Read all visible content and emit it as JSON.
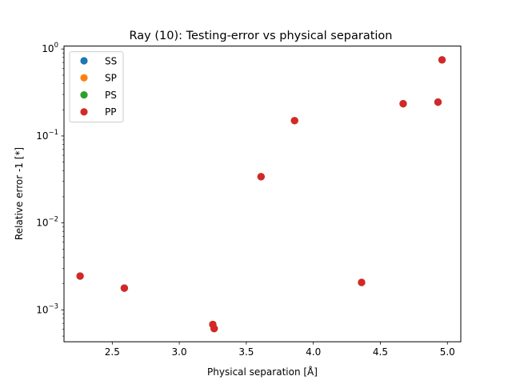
{
  "chart_data": {
    "type": "scatter",
    "title": "Ray (10): Testing-error vs physical separation",
    "xlabel": "Physical separation [Å]",
    "ylabel": "Relative error -1 [*]",
    "xlim": [
      2.14,
      5.1
    ],
    "ylim": [
      0.00043,
      1.08
    ],
    "yscale": "log",
    "grid": false,
    "legend_position": "top-left",
    "x_ticks": [
      {
        "value": 2.5,
        "label": "2.5"
      },
      {
        "value": 3.0,
        "label": "3.0"
      },
      {
        "value": 3.5,
        "label": "3.5"
      },
      {
        "value": 4.0,
        "label": "4.0"
      },
      {
        "value": 4.5,
        "label": "4.5"
      },
      {
        "value": 5.0,
        "label": "5.0"
      }
    ],
    "y_ticks": [
      {
        "value": 0.001,
        "base": "10",
        "exp": "−3"
      },
      {
        "value": 0.01,
        "base": "10",
        "exp": "−2"
      },
      {
        "value": 0.1,
        "base": "10",
        "exp": "−1"
      },
      {
        "value": 1,
        "base": "10",
        "exp": "0"
      }
    ],
    "series": [
      {
        "name": "SS",
        "color": "#1f77b4",
        "x": [
          2.26,
          2.59,
          3.25,
          3.26,
          3.61,
          3.86,
          4.36,
          4.67,
          4.93,
          4.96
        ],
        "y": [
          0.00245,
          0.00178,
          0.00068,
          0.00061,
          0.034,
          0.15,
          0.00207,
          0.235,
          0.245,
          0.75
        ]
      },
      {
        "name": "SP",
        "color": "#ff7f0e",
        "x": [
          2.26,
          2.59,
          3.25,
          3.26,
          3.61,
          3.86,
          4.36,
          4.67,
          4.93,
          4.96
        ],
        "y": [
          0.00245,
          0.00178,
          0.00068,
          0.00061,
          0.034,
          0.15,
          0.00207,
          0.235,
          0.245,
          0.75
        ]
      },
      {
        "name": "PS",
        "color": "#2ca02c",
        "x": [
          2.26,
          2.59,
          3.25,
          3.26,
          3.61,
          3.86,
          4.36,
          4.67,
          4.93,
          4.96
        ],
        "y": [
          0.00245,
          0.00178,
          0.00068,
          0.00061,
          0.034,
          0.15,
          0.00207,
          0.235,
          0.245,
          0.75
        ]
      },
      {
        "name": "PP",
        "color": "#d62728",
        "x": [
          2.26,
          2.59,
          3.25,
          3.26,
          3.61,
          3.86,
          4.36,
          4.67,
          4.93,
          4.96
        ],
        "y": [
          0.00245,
          0.00178,
          0.00068,
          0.00061,
          0.034,
          0.15,
          0.00207,
          0.235,
          0.245,
          0.75
        ]
      }
    ]
  }
}
